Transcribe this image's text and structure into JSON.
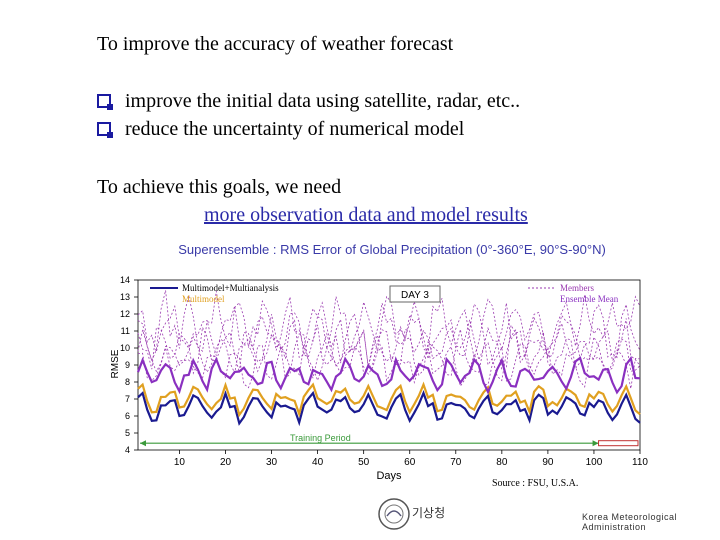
{
  "slide": {
    "title": "To improve the accuracy of weather forecast",
    "bullets": [
      "improve the initial data using satellite, radar, etc..",
      "reduce the uncertainty of numerical model"
    ],
    "need_text": "To achieve this goals, we need",
    "emphasis": "more observation data and model results"
  },
  "footer": {
    "source": "Source : FSU, U.S.A.",
    "org": "Korea Meteorological Administration",
    "logo_text": "기상청"
  },
  "colors": {
    "multimodel_multianalysis": "#1a1a90",
    "multimodel": "#e0a020",
    "ensemble_mean": "#8a30c0",
    "members": "#9a3ab0",
    "training": "#3a9a3a",
    "emphasis": "#2a2aa8"
  },
  "chart_data": {
    "type": "line",
    "title": "Superensemble : RMS Error of Global Precipitation (0°-360°E, 90°S-90°N)",
    "xlabel": "Days",
    "ylabel": "RMSE",
    "xlim": [
      1,
      110
    ],
    "ylim": [
      4,
      14
    ],
    "xticks": [
      10,
      20,
      30,
      40,
      50,
      60,
      70,
      80,
      90,
      100,
      110
    ],
    "yticks": [
      4,
      5,
      6,
      7,
      8,
      9,
      10,
      11,
      12,
      13,
      14
    ],
    "annotation_day": "DAY 3",
    "training_label": "Training Period",
    "training_range": [
      1,
      110
    ],
    "forecast_range": [
      101,
      110
    ],
    "legend_left": [
      "Multimodel+Multianalysis",
      "Multimodel"
    ],
    "legend_right": [
      "Members",
      "Ensemble Mean"
    ],
    "series": [
      {
        "name": "Multimodel+Multianalysis",
        "base": 6.5,
        "amp": 0.55,
        "period": 3.1,
        "seed": 11
      },
      {
        "name": "Multimodel",
        "base": 7.0,
        "amp": 0.55,
        "period": 3.1,
        "seed": 11
      },
      {
        "name": "Ensemble Mean",
        "base": 8.4,
        "amp": 0.6,
        "period": 2.8,
        "seed": 23
      },
      {
        "name": "Members",
        "base": 9.0,
        "amp": 0.8,
        "period": 2.6,
        "seed": 31
      },
      {
        "name": "Members",
        "base": 9.6,
        "amp": 0.9,
        "period": 2.9,
        "seed": 47
      },
      {
        "name": "Members",
        "base": 10.2,
        "amp": 1.0,
        "period": 2.4,
        "seed": 53
      },
      {
        "name": "Members",
        "base": 10.8,
        "amp": 1.1,
        "period": 3.3,
        "seed": 61
      },
      {
        "name": "Members",
        "base": 11.4,
        "amp": 1.2,
        "period": 2.7,
        "seed": 71
      }
    ]
  }
}
